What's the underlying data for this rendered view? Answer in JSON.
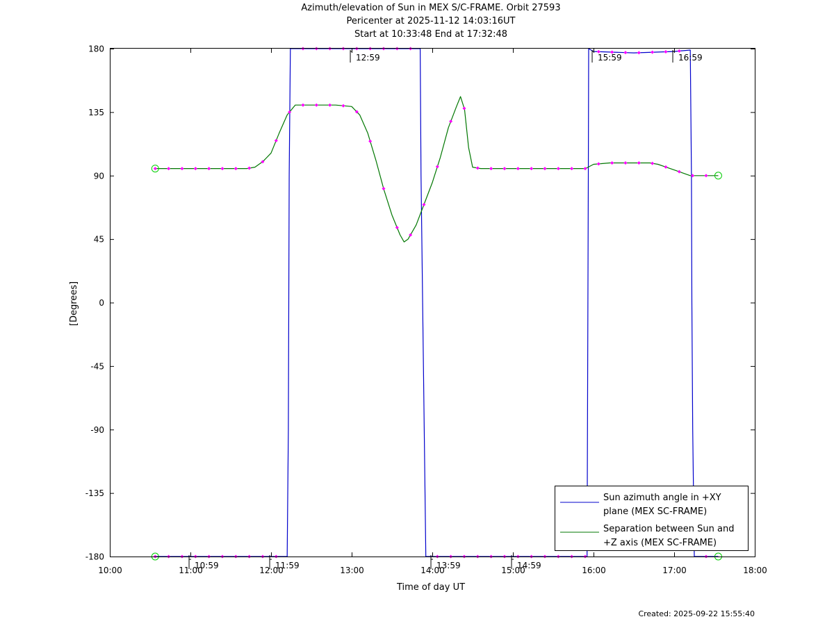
{
  "title_lines": [
    "Azimuth/elevation of Sun in MEX S/C-FRAME.  Orbit 27593",
    "Pericenter at 2025-11-12 14:03:16UT",
    "Start at 10:33:48 End at 17:32:48"
  ],
  "created": "Created: 2025-09-22 15:55:40",
  "chart_data": {
    "type": "line",
    "xlabel": "Time of day UT",
    "ylabel": "[Degrees]",
    "xlim": [
      10.0,
      18.0
    ],
    "ylim": [
      -180,
      180
    ],
    "x_ticks": [
      10,
      11,
      12,
      13,
      14,
      15,
      16,
      17,
      18
    ],
    "x_tick_labels": [
      "10:00",
      "11:00",
      "12:00",
      "13:00",
      "14:00",
      "15:00",
      "16:00",
      "17:00",
      "18:00"
    ],
    "y_ticks": [
      180,
      135,
      90,
      45,
      0,
      -45,
      -90,
      -135,
      -180
    ],
    "y_tick_labels": [
      "180",
      "135",
      "90",
      "45",
      "0",
      "-45",
      "-90",
      "-135",
      "-180"
    ],
    "grid": false,
    "legend_position": "bottom-right",
    "hour_markers": [
      {
        "x": 10.983,
        "side": "bottom",
        "label": "10:59"
      },
      {
        "x": 11.983,
        "side": "bottom",
        "label": "11:59"
      },
      {
        "x": 12.983,
        "side": "top",
        "label": "12:59"
      },
      {
        "x": 13.983,
        "side": "bottom",
        "label": "13:59"
      },
      {
        "x": 14.983,
        "side": "bottom",
        "label": "14:59"
      },
      {
        "x": 15.983,
        "side": "top",
        "label": "15:59"
      },
      {
        "x": 16.983,
        "side": "top",
        "label": "16:59"
      }
    ],
    "series": [
      {
        "name": "Sun azimuth angle in +XY plane (MEX SC-FRAME)",
        "legend_lines": [
          "Sun azimuth angle in +XY",
          "plane (MEX SC-FRAME)"
        ],
        "color": "#0000cc",
        "x": [
          10.563,
          11.0,
          11.5,
          12.0,
          12.2,
          12.215,
          12.22,
          12.225,
          12.24,
          12.5,
          13.0,
          13.5,
          13.85,
          13.86,
          13.88,
          13.9,
          13.92,
          14.0,
          14.5,
          15.0,
          15.5,
          15.92,
          15.925,
          15.93,
          15.935,
          15.94,
          16.0,
          16.5,
          17.0,
          17.2,
          17.215,
          17.22,
          17.23,
          17.25,
          17.547
        ],
        "y": [
          -180,
          -180,
          -180,
          -180,
          -180,
          -90,
          0,
          90,
          180,
          180,
          180,
          180,
          180,
          90,
          0,
          -90,
          -180,
          -180,
          -180,
          -180,
          -180,
          -180,
          -90,
          0,
          90,
          180,
          178,
          177,
          178,
          179,
          90,
          0,
          -90,
          -180,
          -180
        ]
      },
      {
        "name": "Separation between Sun and +Z axis (MEX SC-FRAME)",
        "legend_lines": [
          "Separation between Sun and",
          "+Z axis (MEX SC-FRAME)"
        ],
        "color": "#007700",
        "x": [
          10.563,
          11.0,
          11.5,
          11.7,
          11.8,
          11.9,
          12.0,
          12.1,
          12.2,
          12.3,
          12.5,
          12.8,
          13.0,
          13.1,
          13.2,
          13.3,
          13.4,
          13.5,
          13.6,
          13.65,
          13.7,
          13.8,
          13.9,
          14.0,
          14.1,
          14.2,
          14.3,
          14.35,
          14.4,
          14.45,
          14.5,
          14.6,
          15.0,
          15.5,
          15.8,
          15.9,
          16.0,
          16.2,
          16.5,
          16.7,
          16.8,
          16.9,
          17.0,
          17.2,
          17.547
        ],
        "y": [
          95,
          95,
          95,
          95,
          96,
          100,
          106,
          120,
          133,
          140,
          140,
          140,
          139,
          133,
          120,
          101,
          80,
          62,
          48,
          43,
          45,
          55,
          70,
          85,
          103,
          124,
          139,
          146,
          137,
          110,
          96,
          95,
          95,
          95,
          95,
          95,
          98,
          99,
          99,
          99,
          98,
          96,
          94,
          90,
          90
        ]
      }
    ]
  }
}
